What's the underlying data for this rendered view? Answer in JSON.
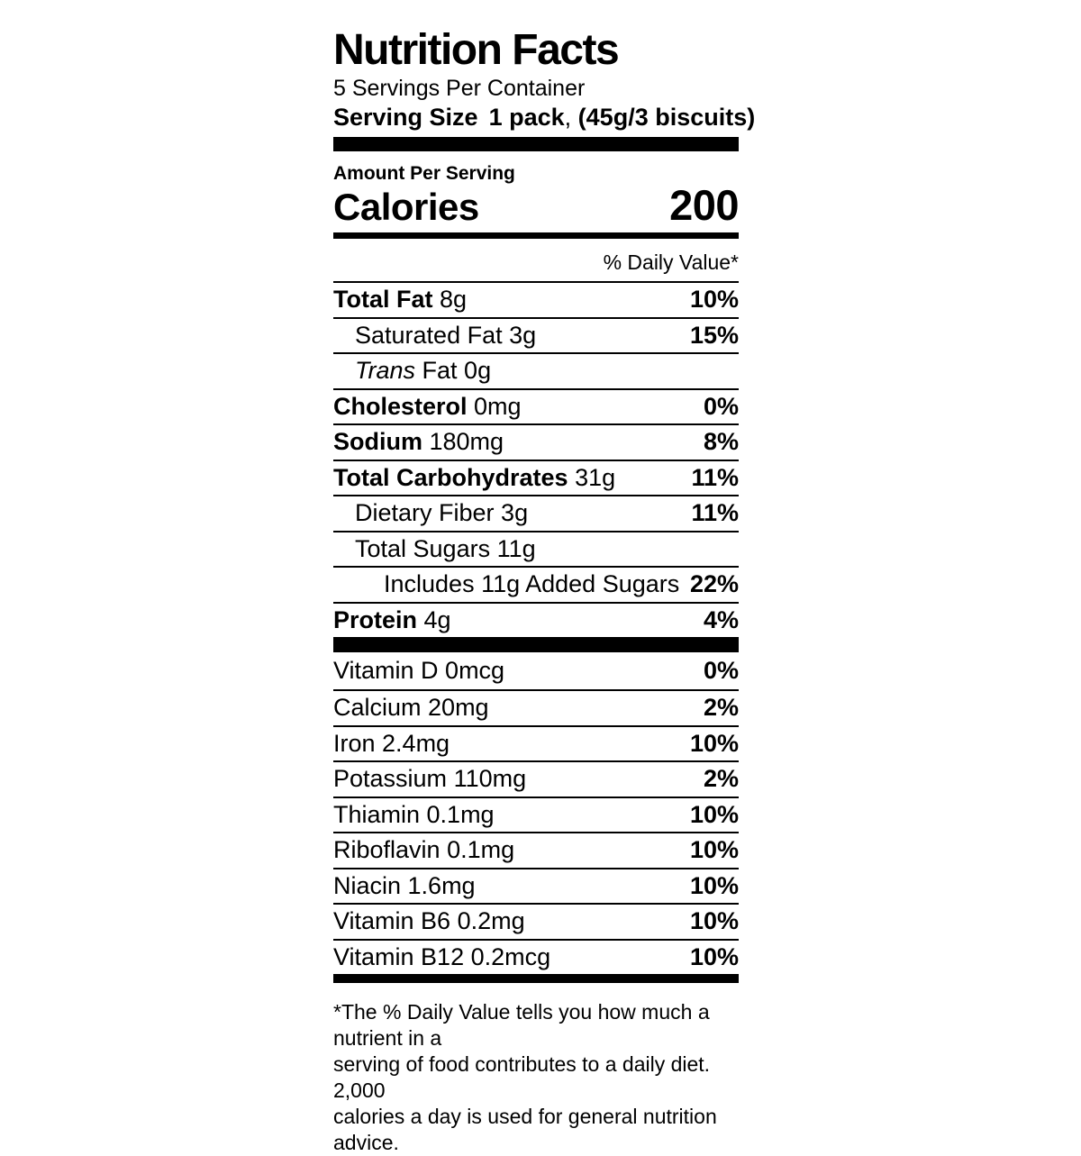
{
  "label": {
    "title": "Nutrition Facts",
    "servings_per_container": "5 Servings Per Container",
    "serving_size": {
      "label": "Serving Size",
      "qty": "1 pack",
      "comma": ",",
      "detail": "(45g/3 biscuits)"
    },
    "amount_per_serving": "Amount Per Serving",
    "calories_label": "Calories",
    "calories_value": "200",
    "daily_value_header": "% Daily Value*",
    "nutrients": [
      {
        "name": "Total Fat",
        "amount": "8g",
        "dv": "10%",
        "bold": true,
        "indent": 0
      },
      {
        "name": "Saturated Fat",
        "amount": "3g",
        "dv": "15%",
        "bold": false,
        "indent": 1
      },
      {
        "name_italic": "Trans",
        "name": "Fat",
        "amount": "0g",
        "dv": "",
        "bold": false,
        "indent": 1
      },
      {
        "name": "Cholesterol",
        "amount": "0mg",
        "dv": "0%",
        "bold": true,
        "indent": 0
      },
      {
        "name": "Sodium",
        "amount": "180mg",
        "dv": "8%",
        "bold": true,
        "indent": 0
      },
      {
        "name": "Total Carbohydrates",
        "amount": "31g",
        "dv": "11%",
        "bold": true,
        "indent": 0
      },
      {
        "name": "Dietary Fiber",
        "amount": "3g",
        "dv": "11%",
        "bold": false,
        "indent": 1
      },
      {
        "name": "Total Sugars",
        "amount": "11g",
        "dv": "",
        "bold": false,
        "indent": 1
      },
      {
        "name": "Includes 11g Added Sugars",
        "amount": "",
        "dv": "22%",
        "bold": false,
        "indent": 2
      },
      {
        "name": "Protein",
        "amount": "4g",
        "dv": "4%",
        "bold": true,
        "indent": 0
      }
    ],
    "vitamins": [
      {
        "name": "Vitamin D",
        "amount": "0mcg",
        "dv": "0%",
        "bold": false,
        "indent": 0
      },
      {
        "name": "Calcium",
        "amount": "20mg",
        "dv": "2%",
        "bold": false,
        "indent": 0
      },
      {
        "name": "Iron",
        "amount": "2.4mg",
        "dv": "10%",
        "bold": false,
        "indent": 0
      },
      {
        "name": "Potassium",
        "amount": "110mg",
        "dv": "2%",
        "bold": false,
        "indent": 0
      },
      {
        "name": "Thiamin",
        "amount": "0.1mg",
        "dv": "10%",
        "bold": false,
        "indent": 0
      },
      {
        "name": "Riboflavin",
        "amount": "0.1mg",
        "dv": "10%",
        "bold": false,
        "indent": 0
      },
      {
        "name": "Niacin",
        "amount": "1.6mg",
        "dv": "10%",
        "bold": false,
        "indent": 0
      },
      {
        "name": "Vitamin B6",
        "amount": "0.2mg",
        "dv": "10%",
        "bold": false,
        "indent": 0
      },
      {
        "name": "Vitamin B12",
        "amount": "0.2mcg",
        "dv": "10%",
        "bold": false,
        "indent": 0
      }
    ],
    "footnote_lines": [
      "*The % Daily Value tells you how much a nutrient in a",
      "serving of food contributes to a daily diet. 2,000",
      "calories a day is used for general nutrition advice."
    ]
  }
}
